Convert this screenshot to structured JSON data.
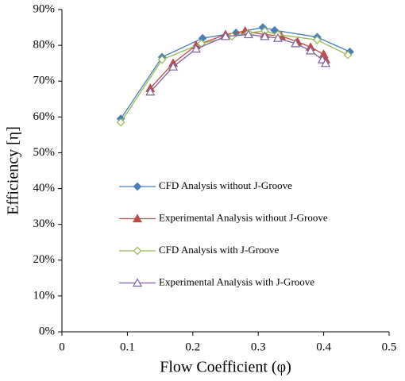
{
  "chart_data": {
    "type": "line",
    "x_label": "Flow Coefficient (φ)",
    "y_label": "Efficiency [η]",
    "xlim": [
      0,
      0.5
    ],
    "xticks": [
      0,
      0.1,
      0.2,
      0.3,
      0.4,
      0.5
    ],
    "ylim": [
      0,
      90
    ],
    "yticks": [
      {
        "value": 0,
        "label": "0%"
      },
      {
        "value": 10,
        "label": "10%"
      },
      {
        "value": 20,
        "label": "20%"
      },
      {
        "value": 30,
        "label": "30%"
      },
      {
        "value": 40,
        "label": "40%"
      },
      {
        "value": 50,
        "label": "50%"
      },
      {
        "value": 60,
        "label": "60%"
      },
      {
        "value": 70,
        "label": "70%"
      },
      {
        "value": 80,
        "label": "80%"
      },
      {
        "value": 90,
        "label": "90%"
      }
    ],
    "series": [
      {
        "name": "CFD Analysis without J-Groove",
        "color": "#4a7ebb",
        "marker": "diamond",
        "filled": true,
        "x": [
          0.09,
          0.153,
          0.215,
          0.266,
          0.307,
          0.325,
          0.39,
          0.44
        ],
        "values": [
          59.5,
          76.7,
          82,
          83.5,
          85,
          84.2,
          82.3,
          78.2
        ]
      },
      {
        "name": "Experimental Analysis without J-Groove",
        "color": "#be4b48",
        "marker": "triangle",
        "filled": true,
        "x": [
          0.135,
          0.17,
          0.205,
          0.25,
          0.28,
          0.31,
          0.335,
          0.36,
          0.38,
          0.4,
          0.403
        ],
        "values": [
          68,
          75,
          80,
          83,
          84,
          83,
          82.6,
          81,
          79.5,
          77.5,
          76
        ]
      },
      {
        "name": "CFD Analysis with J-Groove",
        "color": "#98b954",
        "marker": "diamond",
        "filled": false,
        "x": [
          0.09,
          0.153,
          0.213,
          0.26,
          0.285,
          0.31,
          0.33,
          0.39,
          0.437
        ],
        "values": [
          58.5,
          76,
          80.5,
          82.5,
          83.5,
          84,
          83,
          81.5,
          77.3
        ]
      },
      {
        "name": "Experimental Analysis with J-Groove",
        "color": "#7d60a0",
        "marker": "triangle",
        "filled": false,
        "x": [
          0.135,
          0.17,
          0.205,
          0.25,
          0.285,
          0.31,
          0.33,
          0.357,
          0.38,
          0.398,
          0.403
        ],
        "values": [
          67,
          74,
          79,
          82.5,
          83,
          82.5,
          82,
          80.5,
          78.5,
          76,
          75
        ]
      }
    ]
  }
}
